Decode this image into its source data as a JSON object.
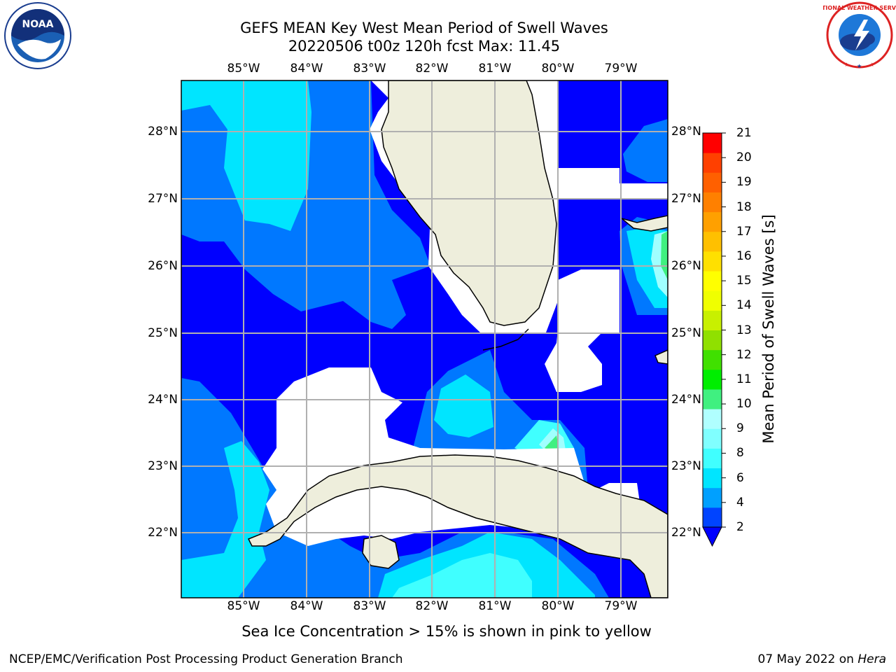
{
  "title": {
    "line1": "GEFS MEAN Key West Mean Period of Swell Waves",
    "line2": "20220506 t00z 120h fcst   Max: 11.45"
  },
  "axes": {
    "lon_labels": [
      "85°W",
      "84°W",
      "83°W",
      "82°W",
      "81°W",
      "80°W",
      "79°W"
    ],
    "lat_labels": [
      "28°N",
      "27°N",
      "26°N",
      "25°N",
      "24°N",
      "23°N",
      "22°N"
    ]
  },
  "colorbar": {
    "label": "Mean Period of Swell Waves [s]",
    "ticks": [
      "21",
      "20",
      "19",
      "18",
      "17",
      "16",
      "15",
      "14",
      "13",
      "12",
      "11",
      "10",
      "9",
      "8",
      "6",
      "4",
      "2"
    ],
    "colors": [
      "#0044ff",
      "#00a0ff",
      "#00e5ff",
      "#40ffff",
      "#80ffff",
      "#b0ffff",
      "#40f080",
      "#00ee00",
      "#40e000",
      "#90e000",
      "#c8f000",
      "#f0ff00",
      "#ffff00",
      "#ffe000",
      "#ffc000",
      "#ffa000",
      "#ff8000",
      "#ff6000",
      "#ff4000",
      "#ff0000"
    ],
    "under_color": "#0000ff"
  },
  "map_colors": {
    "level_2_4": "#0000ff",
    "level_4_6": "#0078ff",
    "level_6_7": "#00e5ff",
    "level_7_8": "#40ffff",
    "level_8_9": "#a0ffff",
    "level_9_10": "#40f080",
    "level_10_11": "#00ee00",
    "land": "#eeeedc",
    "grid": "#b0b0b0"
  },
  "ice_note": "Sea Ice Concentration > 15% is shown in pink to yellow",
  "footer": {
    "left": "NCEP/EMC/Verification Post Processing Product Generation Branch",
    "right_date": "07 May 2022 on",
    "right_host": "Hera"
  },
  "logos": {
    "noaa_text": "NOAA",
    "nws_text": "NATIONAL WEATHER SERVICE"
  }
}
